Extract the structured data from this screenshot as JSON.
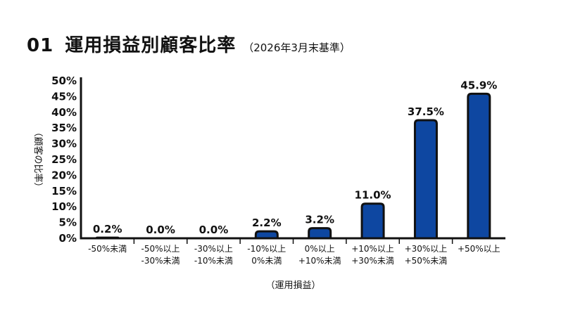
{
  "header": {
    "number": "01",
    "title": "運用損益別顧客比率",
    "subtitle": "（2026年3月末基準）"
  },
  "chart_data": {
    "type": "bar",
    "title": "運用損益別顧客比率",
    "subtitle": "（2026年3月末基準）",
    "xlabel": "（運用損益）",
    "ylabel": "（顧客の比率）",
    "ylim": [
      0,
      50
    ],
    "yticks": [
      0,
      5,
      10,
      15,
      20,
      25,
      30,
      35,
      40,
      45,
      50
    ],
    "ytick_suffix": "%",
    "categories": [
      "-50%未満",
      "-50%以上\n-30%未満",
      "-30%以上\n-10%未満",
      "-10%以上\n0%未満",
      "0%以上\n+10%未満",
      "+10%以上\n+30%未満",
      "+30%以上\n+50%未満",
      "+50%以上"
    ],
    "values": [
      0.2,
      0.0,
      0.0,
      2.2,
      3.2,
      11.0,
      37.5,
      45.9
    ],
    "data_labels": [
      "0.2%",
      "0.0%",
      "0.0%",
      "2.2%",
      "3.2%",
      "11.0%",
      "37.5%",
      "45.9%"
    ],
    "bar_color": "#0e47a1",
    "bar_outline": "#111111",
    "grid": false,
    "legend": "none"
  }
}
